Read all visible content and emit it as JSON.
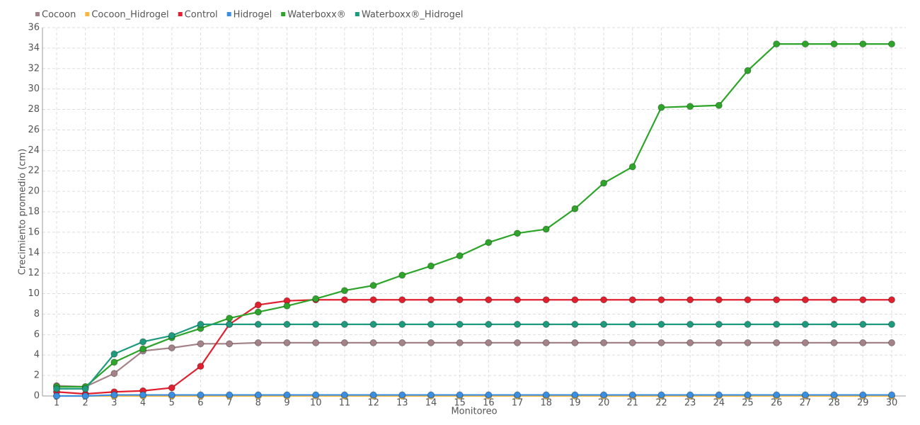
{
  "chart_data": {
    "type": "line",
    "x_label": "Monitoreo",
    "y_label": "Crecimiento promedio (cm)",
    "categories": [
      "1",
      "2",
      "3",
      "4",
      "5",
      "6",
      "7",
      "8",
      "9",
      "10",
      "11",
      "12",
      "13",
      "14",
      "15",
      "16",
      "17",
      "18",
      "19",
      "20",
      "21",
      "22",
      "23",
      "24",
      "25",
      "26",
      "27",
      "28",
      "29",
      "30"
    ],
    "ylim": [
      0,
      36
    ],
    "yticks": [
      0,
      2,
      4,
      6,
      8,
      10,
      12,
      14,
      16,
      18,
      20,
      22,
      24,
      26,
      28,
      30,
      32,
      34,
      36
    ],
    "grid": true,
    "legend": "top-left",
    "series": [
      {
        "name": "Cocoon",
        "color": "#a38387",
        "values": [
          1.0,
          0.9,
          2.2,
          4.4,
          4.7,
          5.1,
          5.1,
          5.2,
          5.2,
          5.2,
          5.2,
          5.2,
          5.2,
          5.2,
          5.2,
          5.2,
          5.2,
          5.2,
          5.2,
          5.2,
          5.2,
          5.2,
          5.2,
          5.2,
          5.2,
          5.2,
          5.2,
          5.2,
          5.2,
          5.2
        ]
      },
      {
        "name": "Cocoon_Hidrogel",
        "color": "#f5b940",
        "values": [
          0,
          0,
          0,
          0,
          0,
          0,
          0,
          0,
          0,
          0,
          0,
          0,
          0,
          0,
          0,
          0,
          0,
          0,
          0,
          0,
          0,
          0,
          0,
          0,
          0,
          0,
          0,
          0,
          0,
          0
        ]
      },
      {
        "name": "Control",
        "color": "#e0202e",
        "values": [
          0.4,
          0.2,
          0.4,
          0.5,
          0.8,
          2.9,
          7.0,
          8.9,
          9.3,
          9.4,
          9.4,
          9.4,
          9.4,
          9.4,
          9.4,
          9.4,
          9.4,
          9.4,
          9.4,
          9.4,
          9.4,
          9.4,
          9.4,
          9.4,
          9.4,
          9.4,
          9.4,
          9.4,
          9.4,
          9.4
        ]
      },
      {
        "name": "Hidrogel",
        "color": "#3b8fe0",
        "values": [
          0,
          0,
          0.1,
          0.1,
          0.1,
          0.1,
          0.1,
          0.1,
          0.1,
          0.1,
          0.1,
          0.1,
          0.1,
          0.1,
          0.1,
          0.1,
          0.1,
          0.1,
          0.1,
          0.1,
          0.1,
          0.1,
          0.1,
          0.1,
          0.1,
          0.1,
          0.1,
          0.1,
          0.1,
          0.1
        ]
      },
      {
        "name": "Waterboxx®",
        "color": "#2ea52a",
        "values": [
          0.9,
          0.9,
          3.3,
          4.6,
          5.7,
          6.6,
          7.6,
          8.2,
          8.8,
          9.5,
          10.3,
          10.8,
          11.8,
          12.7,
          13.7,
          15.0,
          15.9,
          16.3,
          18.3,
          20.8,
          22.4,
          28.2,
          28.3,
          28.4,
          31.8,
          34.4,
          34.4,
          34.4,
          34.4,
          34.4
        ]
      },
      {
        "name": "Waterboxx®_Hidrogel",
        "color": "#1e9a7e",
        "values": [
          0.7,
          0.7,
          4.1,
          5.3,
          5.9,
          7.0,
          7.0,
          7.0,
          7.0,
          7.0,
          7.0,
          7.0,
          7.0,
          7.0,
          7.0,
          7.0,
          7.0,
          7.0,
          7.0,
          7.0,
          7.0,
          7.0,
          7.0,
          7.0,
          7.0,
          7.0,
          7.0,
          7.0,
          7.0,
          7.0
        ]
      }
    ]
  }
}
